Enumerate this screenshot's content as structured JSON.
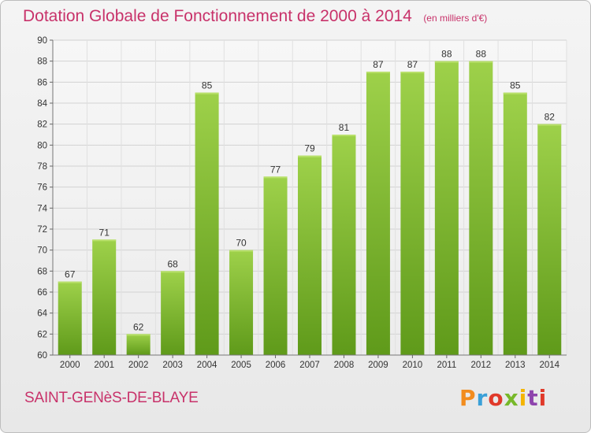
{
  "header": {
    "title": "Dotation Globale de Fonctionnement de 2000 à 2014",
    "unit": "(en milliers d'€)"
  },
  "footer": {
    "commune": "SAINT-GENèS-DE-BLAYE",
    "logo": "Proxiti",
    "logo_colors": [
      "#f28c1e",
      "#3aa0d8",
      "#e0392a",
      "#77b82a",
      "#f4b400",
      "#8e44ad",
      "#e0392a"
    ]
  },
  "colors": {
    "bar_light": "#9ed14a",
    "bar_dark": "#5f9a1a",
    "accent": "#c8326a"
  },
  "chart_data": {
    "type": "bar",
    "title": "Dotation Globale de Fonctionnement de 2000 à 2014",
    "subtitle": "(en milliers d'€)",
    "xlabel": "",
    "ylabel": "",
    "categories": [
      "2000",
      "2001",
      "2002",
      "2003",
      "2004",
      "2005",
      "2006",
      "2007",
      "2008",
      "2009",
      "2010",
      "2011",
      "2012",
      "2013",
      "2014"
    ],
    "values": [
      67,
      71,
      62,
      68,
      85,
      70,
      77,
      79,
      81,
      87,
      87,
      88,
      88,
      85,
      82
    ],
    "ylim": [
      60,
      90
    ],
    "yticks": [
      60,
      62,
      64,
      66,
      68,
      70,
      72,
      74,
      76,
      78,
      80,
      82,
      84,
      86,
      88,
      90
    ],
    "grid": true,
    "legend": "none"
  }
}
